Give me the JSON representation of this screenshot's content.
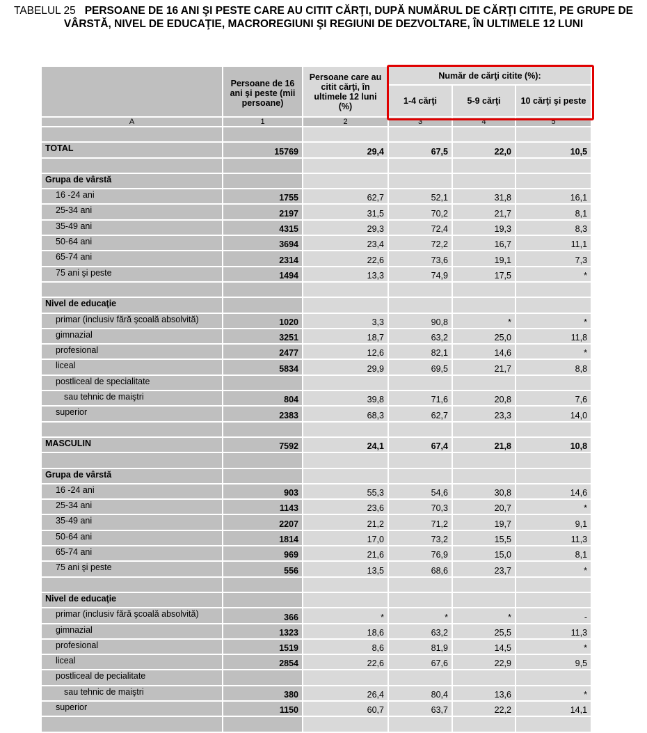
{
  "title": {
    "number": "TABELUL 25",
    "text": "PERSOANE DE 16 ANI ŞI PESTE CARE AU CITIT CĂRŢI, DUPĂ NUMĂRUL DE CĂRŢI CITITE, PE GRUPE DE VÂRSTĂ, NIVEL DE EDUCAŢIE, MACROREGIUNI ŞI REGIUNI DE DEZVOLTARE, ÎN ULTIMELE 12 LUNI"
  },
  "header": {
    "col1": "Persoane de 16 ani şi peste (mii persoane)",
    "col2": "Persoane care au citit cărţi, în ultimele 12 luni (%)",
    "group": "Număr de cărţi citite (%):",
    "col3": "1-4 cărţi",
    "col4": "5-9 cărţi",
    "col5": "10 cărţi şi peste",
    "index": [
      "A",
      "1",
      "2",
      "3",
      "4",
      "5"
    ]
  },
  "highlight_color": "#e00000",
  "rows": [
    {
      "type": "blank"
    },
    {
      "type": "total",
      "label": "TOTAL",
      "values": [
        "15769",
        "29,4",
        "67,5",
        "22,0",
        "10,5"
      ]
    },
    {
      "type": "blank"
    },
    {
      "type": "section",
      "label": "Grupa de vârstă"
    },
    {
      "type": "item",
      "label": "16 -24 ani",
      "values": [
        "1755",
        "62,7",
        "52,1",
        "31,8",
        "16,1"
      ]
    },
    {
      "type": "item",
      "label": "25-34 ani",
      "values": [
        "2197",
        "31,5",
        "70,2",
        "21,7",
        "8,1"
      ]
    },
    {
      "type": "item",
      "label": "35-49 ani",
      "values": [
        "4315",
        "29,3",
        "72,4",
        "19,3",
        "8,3"
      ]
    },
    {
      "type": "item",
      "label": "50-64 ani",
      "values": [
        "3694",
        "23,4",
        "72,2",
        "16,7",
        "11,1"
      ]
    },
    {
      "type": "item",
      "label": "65-74 ani",
      "values": [
        "2314",
        "22,6",
        "73,6",
        "19,1",
        "7,3"
      ]
    },
    {
      "type": "item",
      "label": "75 ani şi peste",
      "values": [
        "1494",
        "13,3",
        "74,9",
        "17,5",
        "*"
      ]
    },
    {
      "type": "blank"
    },
    {
      "type": "section",
      "label": "Nivel de educaţie"
    },
    {
      "type": "item",
      "label": "primar (inclusiv fără şcoală absolvită)",
      "values": [
        "1020",
        "3,3",
        "90,8",
        "*",
        "*"
      ]
    },
    {
      "type": "item",
      "label": "gimnazial",
      "values": [
        "3251",
        "18,7",
        "63,2",
        "25,0",
        "11,8"
      ]
    },
    {
      "type": "item",
      "label": "profesional",
      "values": [
        "2477",
        "12,6",
        "82,1",
        "14,6",
        "*"
      ]
    },
    {
      "type": "item",
      "label": "liceal",
      "values": [
        "5834",
        "29,9",
        "69,5",
        "21,7",
        "8,8"
      ]
    },
    {
      "type": "item",
      "label": "postliceal de specialitate"
    },
    {
      "type": "sub",
      "label": "sau tehnic de maiştri",
      "values": [
        "804",
        "39,8",
        "71,6",
        "20,8",
        "7,6"
      ]
    },
    {
      "type": "item",
      "label": "superior",
      "values": [
        "2383",
        "68,3",
        "62,7",
        "23,3",
        "14,0"
      ]
    },
    {
      "type": "blank"
    },
    {
      "type": "total",
      "label": "MASCULIN",
      "values": [
        "7592",
        "24,1",
        "67,4",
        "21,8",
        "10,8"
      ]
    },
    {
      "type": "blank"
    },
    {
      "type": "section",
      "label": "Grupa de vârstă"
    },
    {
      "type": "item",
      "label": "16 -24 ani",
      "values": [
        "903",
        "55,3",
        "54,6",
        "30,8",
        "14,6"
      ]
    },
    {
      "type": "item",
      "label": "25-34 ani",
      "values": [
        "1143",
        "23,6",
        "70,3",
        "20,7",
        "*"
      ]
    },
    {
      "type": "item",
      "label": "35-49 ani",
      "values": [
        "2207",
        "21,2",
        "71,2",
        "19,7",
        "9,1"
      ]
    },
    {
      "type": "item",
      "label": "50-64 ani",
      "values": [
        "1814",
        "17,0",
        "73,2",
        "15,5",
        "11,3"
      ]
    },
    {
      "type": "item",
      "label": "65-74 ani",
      "values": [
        "969",
        "21,6",
        "76,9",
        "15,0",
        "8,1"
      ]
    },
    {
      "type": "item",
      "label": "75 ani şi peste",
      "values": [
        "556",
        "13,5",
        "68,6",
        "23,7",
        "*"
      ]
    },
    {
      "type": "blank"
    },
    {
      "type": "section",
      "label": "Nivel de educaţie"
    },
    {
      "type": "item",
      "label": "primar (inclusiv fără şcoală absolvită)",
      "values": [
        "366",
        "*",
        "*",
        "*",
        "-"
      ]
    },
    {
      "type": "item",
      "label": "gimnazial",
      "values": [
        "1323",
        "18,6",
        "63,2",
        "25,5",
        "11,3"
      ]
    },
    {
      "type": "item",
      "label": "profesional",
      "values": [
        "1519",
        "8,6",
        "81,9",
        "14,5",
        "*"
      ]
    },
    {
      "type": "item",
      "label": "liceal",
      "values": [
        "2854",
        "22,6",
        "67,6",
        "22,9",
        "9,5"
      ]
    },
    {
      "type": "item",
      "label": "postliceal de pecialitate"
    },
    {
      "type": "sub",
      "label": "sau tehnic de maiştri",
      "values": [
        "380",
        "26,4",
        "80,4",
        "13,6",
        "*"
      ]
    },
    {
      "type": "item",
      "label": "superior",
      "values": [
        "1150",
        "60,7",
        "63,7",
        "22,2",
        "14,1"
      ]
    },
    {
      "type": "blank"
    }
  ]
}
